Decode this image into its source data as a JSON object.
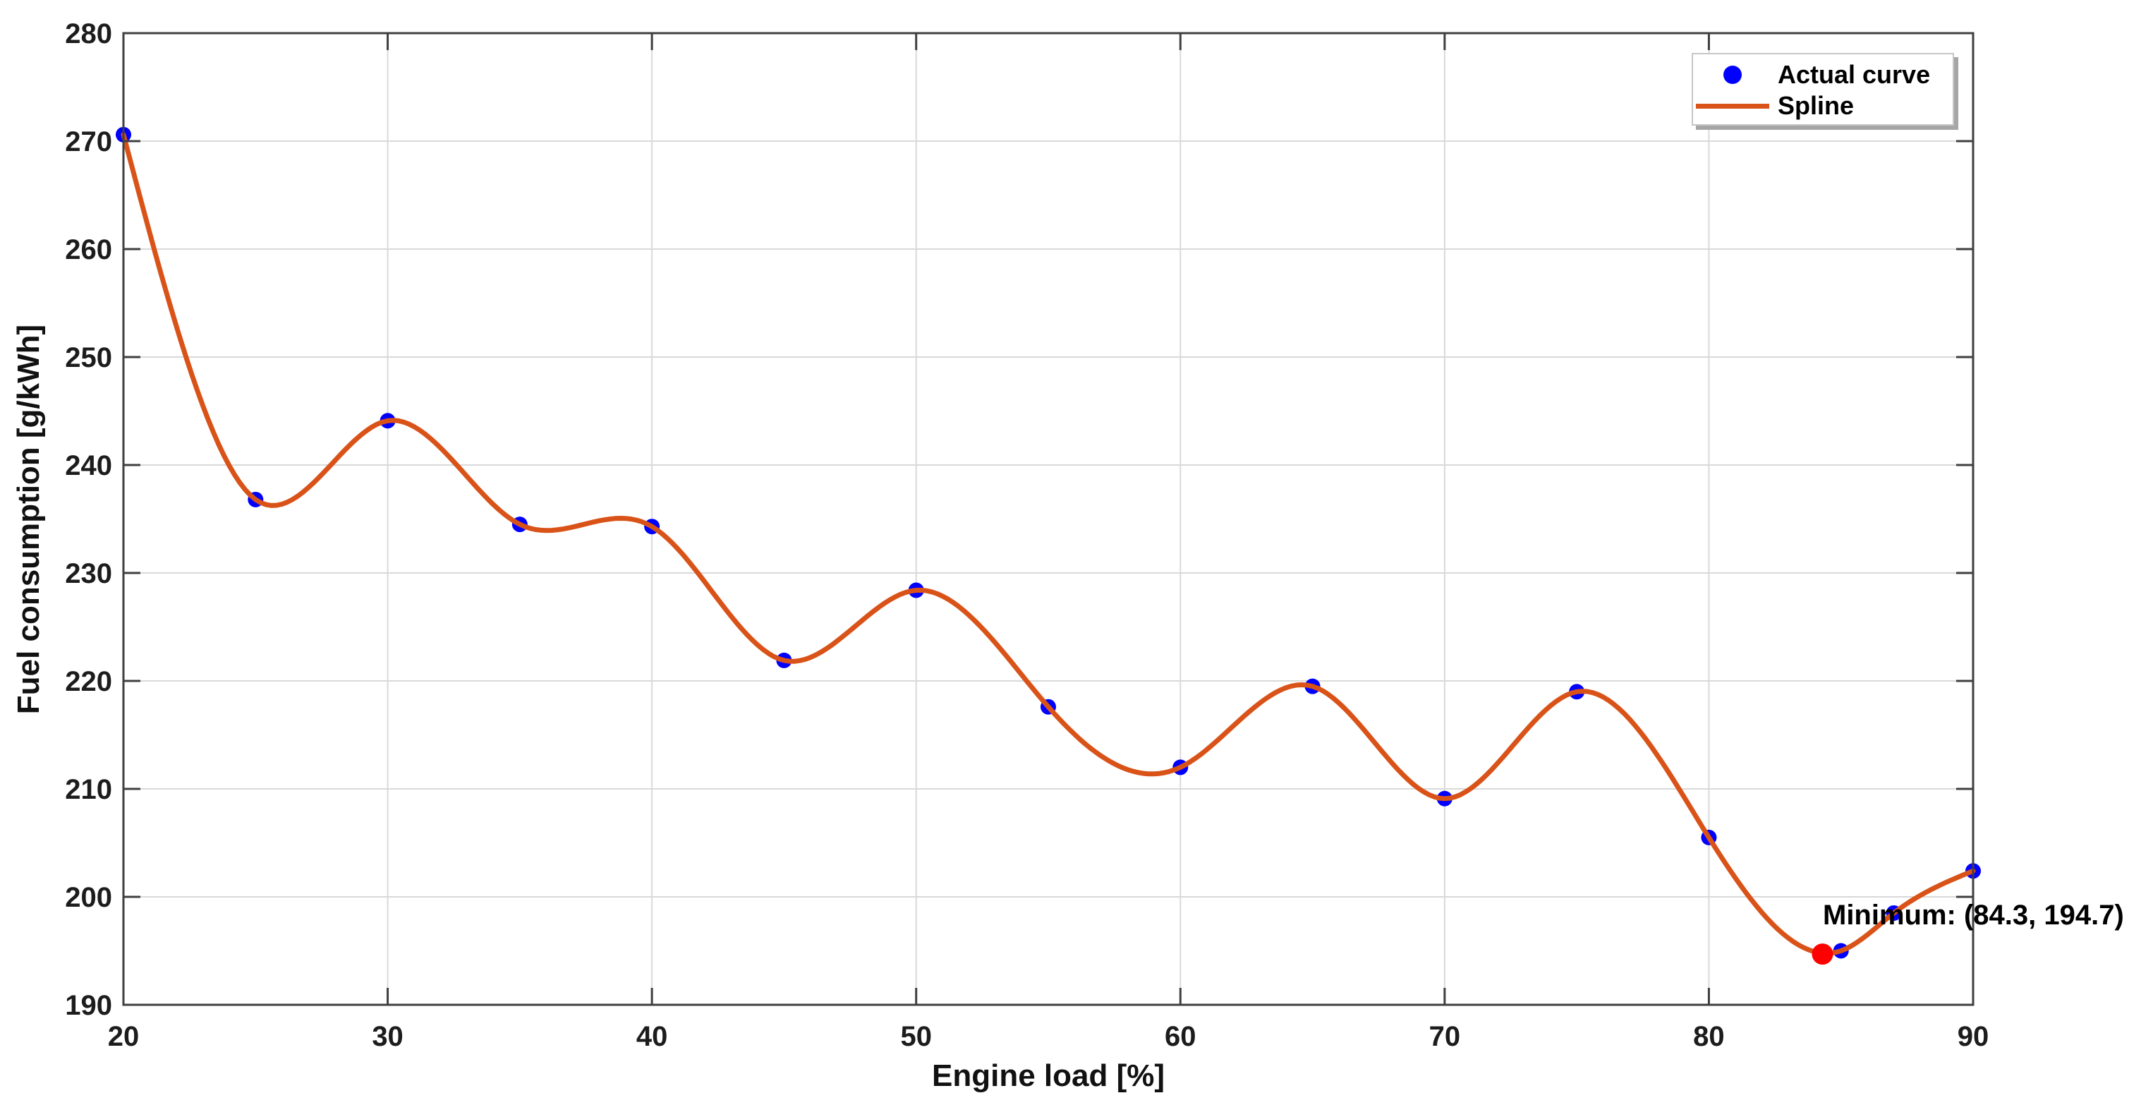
{
  "figure": {
    "background": "#ffffff",
    "plot_box_color": "#3f3f3f",
    "grid_color": "#d9d9d9",
    "tick_label_color": "#1c1c1c"
  },
  "chart_data": {
    "type": "line",
    "title": "",
    "xlabel": "Engine load [%]",
    "ylabel": "Fuel consumption [g/kWh]",
    "xlim": [
      20,
      90
    ],
    "ylim": [
      190,
      280
    ],
    "xticks": [
      20,
      30,
      40,
      50,
      60,
      70,
      80,
      90
    ],
    "yticks": [
      190,
      200,
      210,
      220,
      230,
      240,
      250,
      260,
      270,
      280
    ],
    "grid": true,
    "legend_position": "top-right",
    "x": [
      20,
      25,
      30,
      35,
      40,
      45,
      50,
      55,
      60,
      65,
      70,
      75,
      80,
      85,
      87,
      90
    ],
    "series": [
      {
        "name": "Actual curve",
        "style": "scatter",
        "marker": "dot",
        "color": "#0000ff",
        "values": [
          270.6,
          236.8,
          244.1,
          234.5,
          234.3,
          221.9,
          228.4,
          217.6,
          212.0,
          219.5,
          209.1,
          219.0,
          205.5,
          195.0,
          198.5,
          202.4
        ]
      },
      {
        "name": "Spline",
        "style": "spline",
        "color": "#d95319",
        "note": "natural cubic spline interpolating the Actual curve points",
        "values": [
          270.6,
          236.8,
          244.1,
          234.5,
          234.3,
          221.9,
          228.4,
          217.6,
          212.0,
          219.5,
          209.1,
          219.0,
          205.5,
          195.0,
          198.5,
          202.4
        ]
      }
    ],
    "minimum": {
      "x": 84.3,
      "y": 194.7,
      "color": "#ff0000",
      "label": "Minimum: (84.3, 194.7)"
    }
  }
}
